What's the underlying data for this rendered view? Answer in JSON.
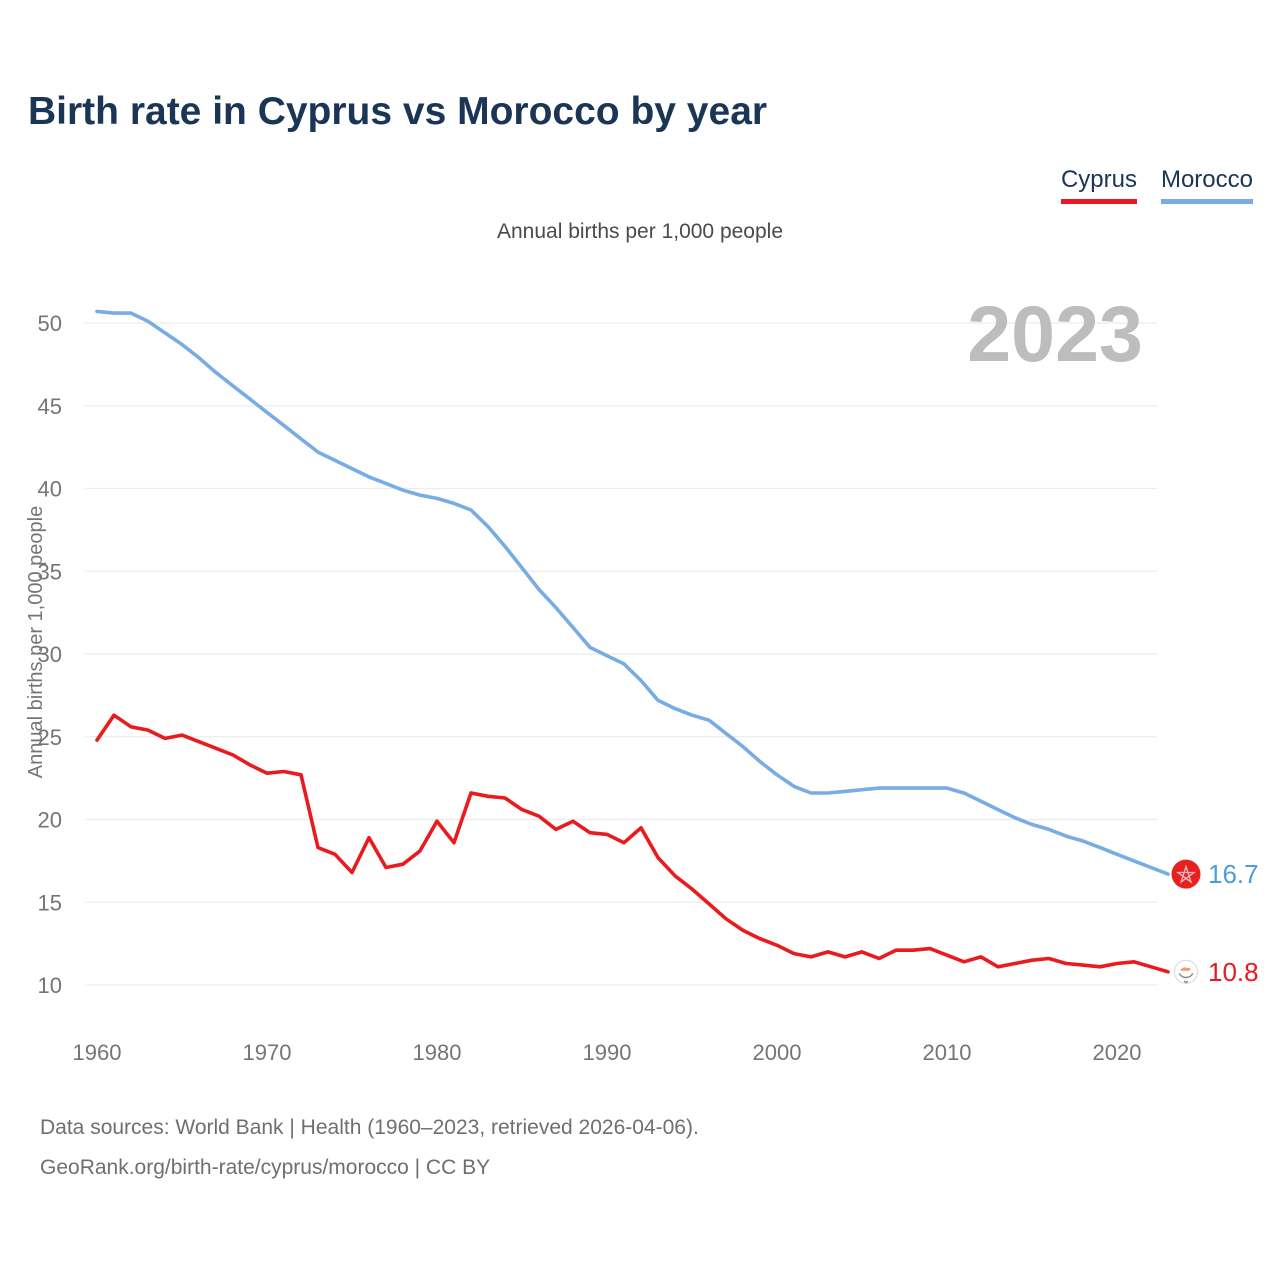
{
  "title": "Birth rate in Cyprus vs Morocco by year",
  "subtitle": "Annual births per 1,000 people",
  "watermark": "2023",
  "legend": {
    "items": [
      {
        "label": "Cyprus",
        "color": "#E8191F"
      },
      {
        "label": "Morocco",
        "color": "#78ACE4"
      }
    ]
  },
  "footer": {
    "line1": "Data sources: World Bank | Health (1960–2023, retrieved 2026-04-06).",
    "line2": "GeoRank.org/birth-rate/cyprus/morocco | CC BY"
  },
  "chart_data": {
    "type": "line",
    "title": "Birth rate in Cyprus vs Morocco by year",
    "ylabel": "Annual births per 1,000 people",
    "xlabel": "",
    "ylim": [
      10,
      50
    ],
    "yticks": [
      10,
      15,
      20,
      25,
      30,
      35,
      40,
      45,
      50
    ],
    "xticks": [
      1960,
      1970,
      1980,
      1990,
      2000,
      2010,
      2020
    ],
    "grid": "horizontal",
    "legend_position": "top-right",
    "watermark": "2023",
    "years": [
      1960,
      1961,
      1962,
      1963,
      1964,
      1965,
      1966,
      1967,
      1968,
      1969,
      1970,
      1971,
      1972,
      1973,
      1974,
      1975,
      1976,
      1977,
      1978,
      1979,
      1980,
      1981,
      1982,
      1983,
      1984,
      1985,
      1986,
      1987,
      1988,
      1989,
      1990,
      1991,
      1992,
      1993,
      1994,
      1995,
      1996,
      1997,
      1998,
      1999,
      2000,
      2001,
      2002,
      2003,
      2004,
      2005,
      2006,
      2007,
      2008,
      2009,
      2010,
      2011,
      2012,
      2013,
      2014,
      2015,
      2016,
      2017,
      2018,
      2019,
      2020,
      2021,
      2022,
      2023
    ],
    "series": [
      {
        "name": "Morocco",
        "color": "#78ACE4",
        "label_color": "#4E9BDD",
        "end_label": "16.7",
        "flag": "morocco-flag",
        "values": [
          50.7,
          50.6,
          50.6,
          50.1,
          49.4,
          48.7,
          47.9,
          47.0,
          46.2,
          45.4,
          44.6,
          43.8,
          43.0,
          42.2,
          41.7,
          41.2,
          40.7,
          40.3,
          39.9,
          39.6,
          39.4,
          39.1,
          38.7,
          37.7,
          36.5,
          35.2,
          33.9,
          32.8,
          31.6,
          30.4,
          29.9,
          29.4,
          28.4,
          27.2,
          26.7,
          26.3,
          26.0,
          25.2,
          24.4,
          23.5,
          22.7,
          22.0,
          21.6,
          21.6,
          21.7,
          21.8,
          21.9,
          21.9,
          21.9,
          21.9,
          21.9,
          21.6,
          21.1,
          20.6,
          20.1,
          19.7,
          19.4,
          19.0,
          18.7,
          18.3,
          17.9,
          17.5,
          17.1,
          16.7
        ]
      },
      {
        "name": "Cyprus",
        "color": "#EA1B1F",
        "label_color": "#E8191F",
        "end_label": "10.8",
        "flag": "cyprus-flag",
        "values": [
          24.8,
          26.3,
          25.6,
          25.4,
          24.9,
          25.1,
          24.7,
          24.3,
          23.9,
          23.3,
          22.8,
          22.9,
          22.7,
          18.3,
          17.9,
          16.8,
          18.9,
          17.1,
          17.3,
          18.1,
          19.9,
          18.6,
          21.6,
          21.4,
          21.3,
          20.6,
          20.2,
          19.4,
          19.9,
          19.2,
          19.1,
          18.6,
          19.5,
          17.7,
          16.6,
          15.8,
          14.9,
          14.0,
          13.3,
          12.8,
          12.4,
          11.9,
          11.7,
          12.0,
          11.7,
          12.0,
          11.6,
          12.1,
          12.1,
          12.2,
          11.8,
          11.4,
          11.7,
          11.1,
          11.3,
          11.5,
          11.6,
          11.3,
          11.2,
          11.1,
          11.3,
          11.4,
          11.1,
          10.8
        ]
      }
    ]
  }
}
